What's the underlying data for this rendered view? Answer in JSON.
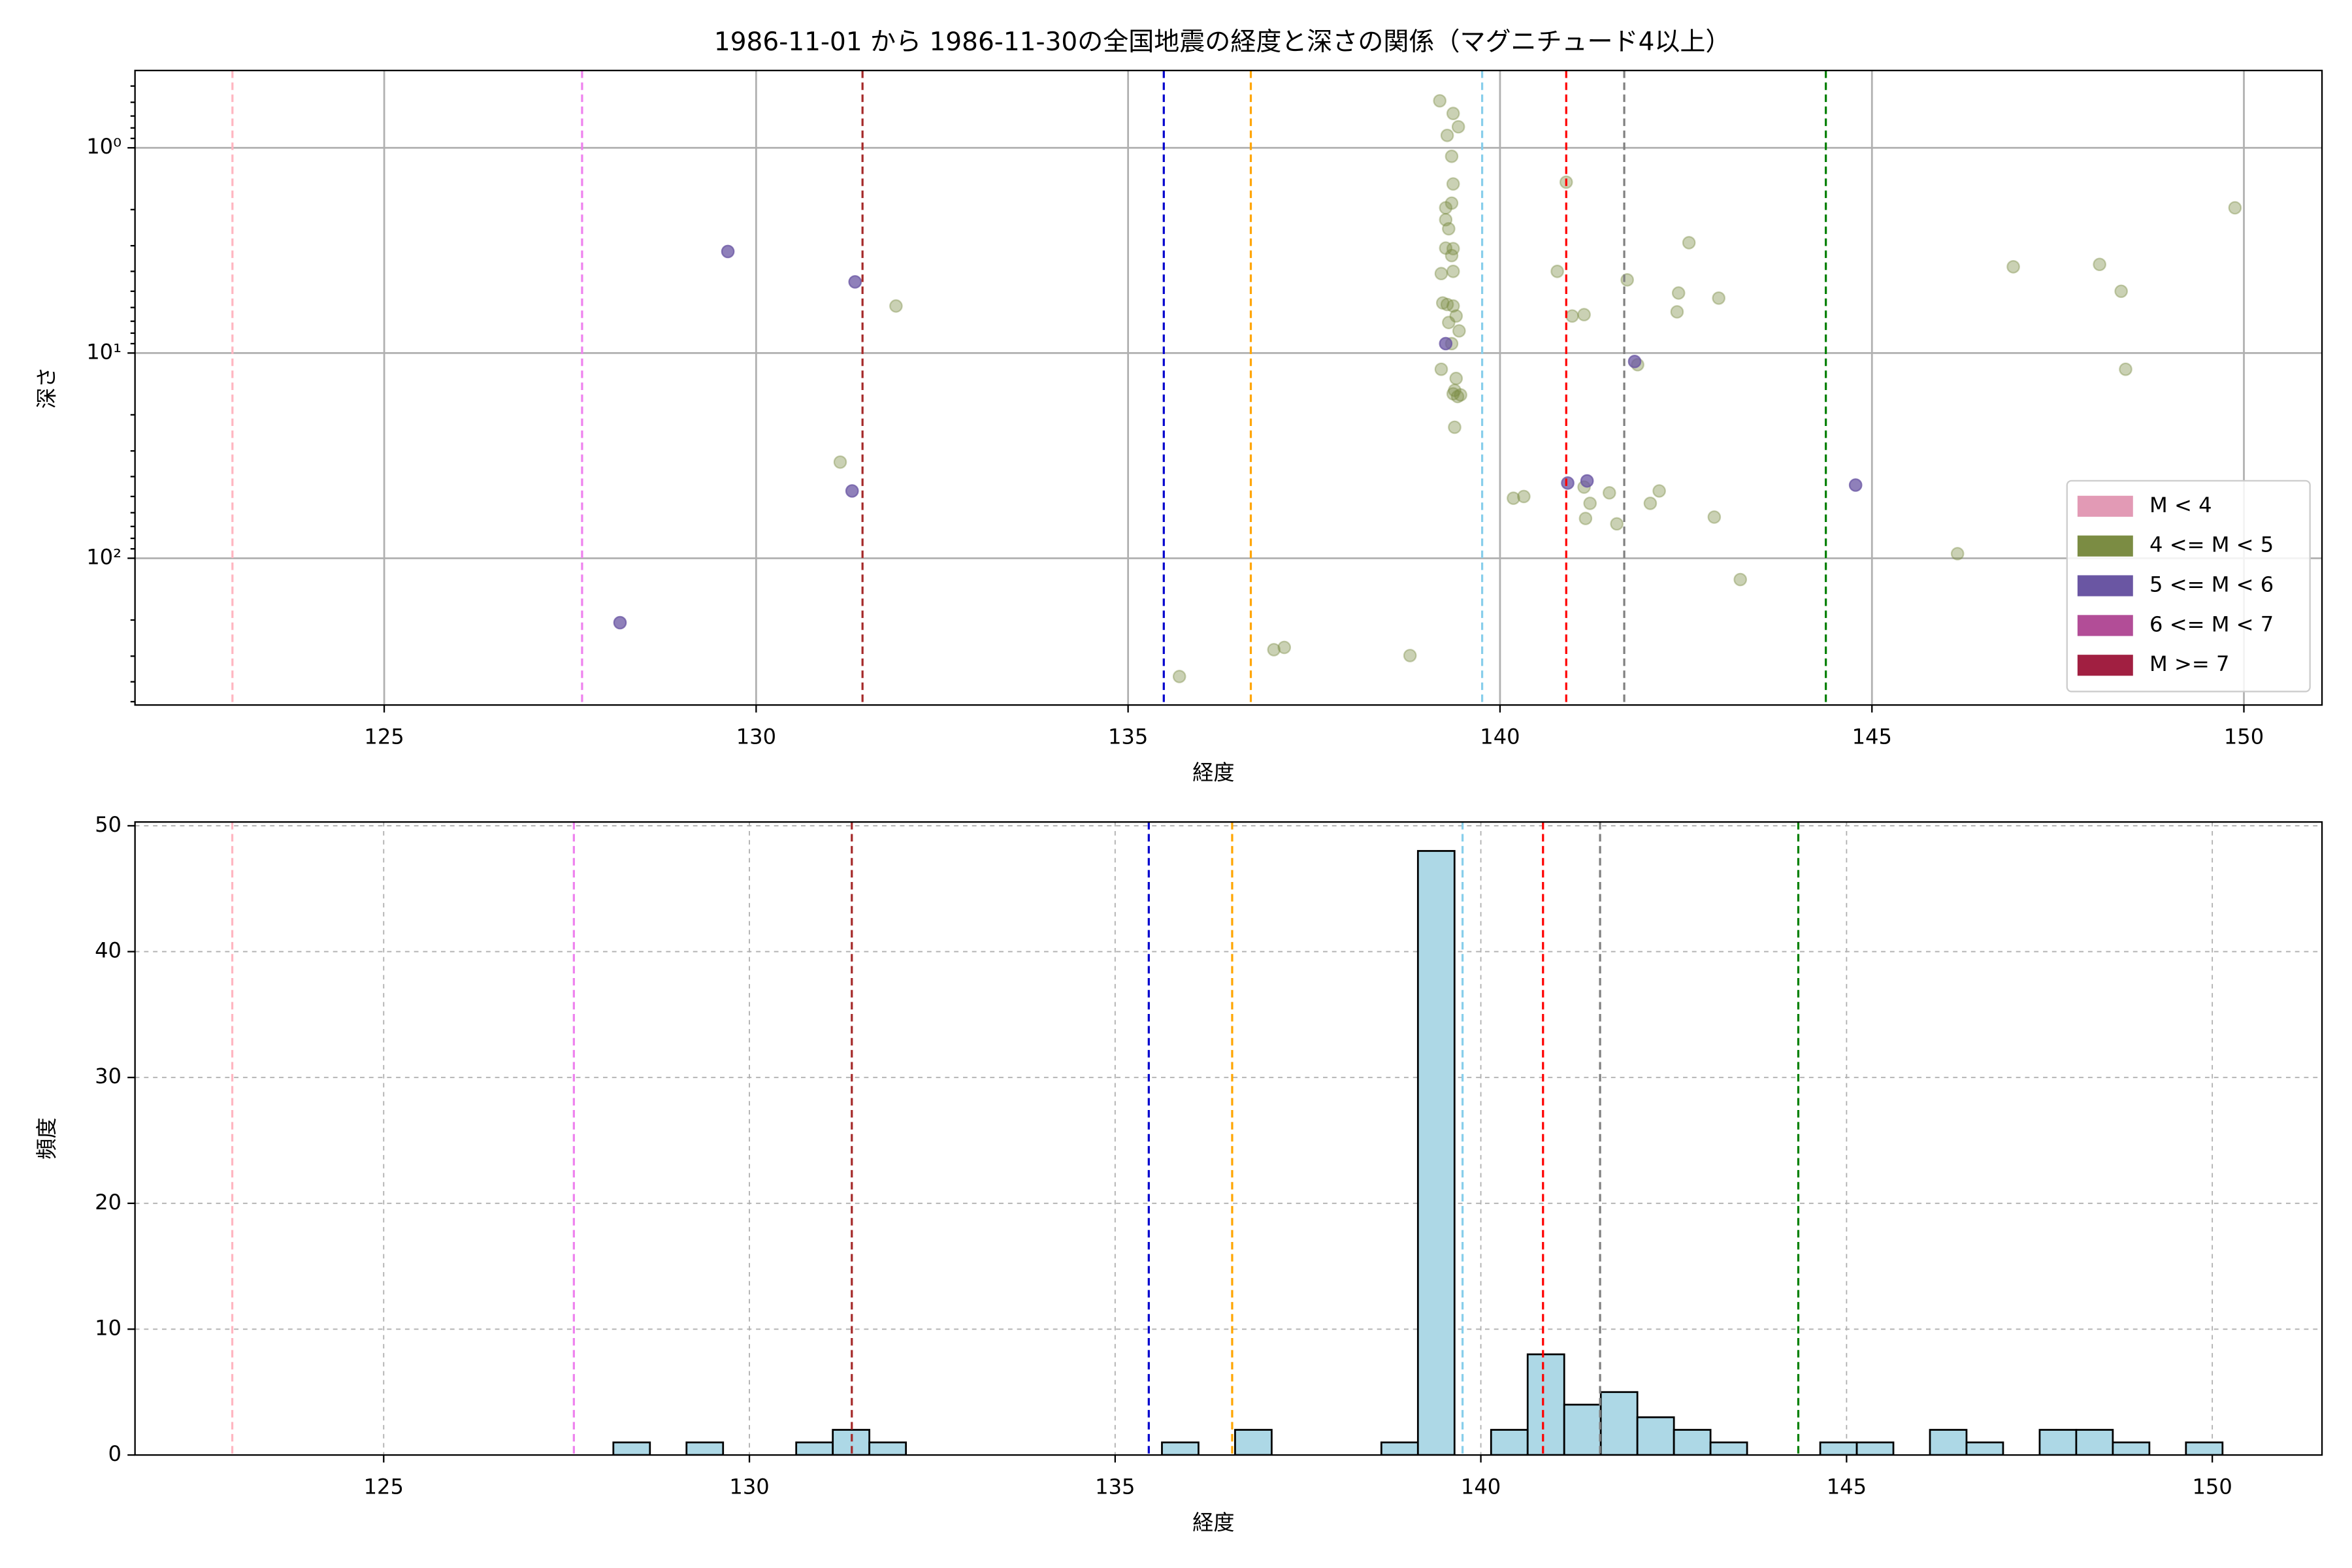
{
  "chart_data": [
    {
      "type": "scatter",
      "title": "1986-11-01 から 1986-11-30の全国地震の経度と深さの関係（マグニチュード4以上）",
      "xlabel": "経度",
      "ylabel": "深さ",
      "xlim": [
        121.65,
        151.05
      ],
      "xticks": [
        125,
        130,
        135,
        140,
        145,
        150
      ],
      "ylim": [
        519,
        0.42
      ],
      "yscale": "log",
      "yticks": [
        {
          "value": 1,
          "label": "10⁰"
        },
        {
          "value": 10,
          "label": "10¹"
        },
        {
          "value": 100,
          "label": "10²"
        }
      ],
      "yminorticks": [
        0.5,
        0.6,
        0.7,
        0.8,
        0.9,
        2,
        3,
        4,
        5,
        6,
        7,
        8,
        9,
        20,
        30,
        40,
        50,
        60,
        70,
        80,
        90,
        200,
        300,
        400,
        500
      ],
      "grid": "solid",
      "legend": "lower right",
      "vlines": [
        {
          "x": 122.96,
          "color": "#ffb6c1"
        },
        {
          "x": 127.66,
          "color": "#ee82ee"
        },
        {
          "x": 131.43,
          "color": "#a52a2a"
        },
        {
          "x": 135.48,
          "color": "#0000cd"
        },
        {
          "x": 136.65,
          "color": "#ffa500"
        },
        {
          "x": 139.76,
          "color": "#87ceeb"
        },
        {
          "x": 140.89,
          "color": "#ff0000"
        },
        {
          "x": 141.67,
          "color": "#808080"
        },
        {
          "x": 144.38,
          "color": "#008000"
        }
      ],
      "series": [
        {
          "name": "M < 4",
          "color": "#e29ab5",
          "alpha": 0.5,
          "x": [],
          "values": []
        },
        {
          "name": "4 <= M < 5",
          "color": "#7b8c43",
          "alpha": 0.4,
          "x": [
            131.88,
            131.13,
            135.69,
            136.96,
            137.1,
            138.79,
            139.19,
            139.29,
            139.37,
            139.44,
            139.35,
            139.37,
            139.27,
            139.27,
            139.31,
            139.35,
            139.27,
            139.37,
            139.35,
            139.21,
            139.37,
            139.23,
            139.29,
            139.37,
            139.41,
            139.31,
            139.45,
            139.35,
            139.21,
            139.41,
            139.39,
            139.47,
            139.43,
            139.37,
            139.39,
            140.89,
            140.77,
            140.97,
            141.13,
            141.71,
            142.54,
            142.4,
            142.38,
            142.94,
            141.85,
            140.32,
            140.18,
            141.13,
            141.21,
            141.15,
            141.47,
            141.57,
            142.14,
            142.02,
            142.88,
            143.23,
            146.15,
            146.9,
            148.06,
            148.35,
            148.41,
            149.88
          ],
          "values": [
            5.9,
            34,
            377,
            279,
            272,
            298,
            0.59,
            0.87,
            0.68,
            0.79,
            1.1,
            1.5,
            1.96,
            2.24,
            2.48,
            1.86,
            3.08,
            3.1,
            3.35,
            4.1,
            4.0,
            5.7,
            5.8,
            5.9,
            6.6,
            7.1,
            7.8,
            9.0,
            12,
            13.3,
            15.2,
            16,
            16.3,
            15.8,
            23,
            1.47,
            4.0,
            6.6,
            6.5,
            4.4,
            2.9,
            5.1,
            6.3,
            5.4,
            11.4,
            50,
            51,
            45,
            54,
            64,
            48,
            68,
            47,
            54,
            63,
            127,
            95,
            3.8,
            3.7,
            5.0,
            12,
            1.96
          ]
        },
        {
          "name": "5 <= M < 6",
          "color": "#6a56a3",
          "alpha": 0.75,
          "x": [
            129.62,
            131.33,
            131.29,
            128.17,
            139.27,
            140.91,
            141.17,
            141.81,
            144.78
          ],
          "values": [
            3.2,
            4.5,
            47,
            206,
            9.0,
            43,
            42,
            11,
            44
          ]
        },
        {
          "name": "6 <= M < 7",
          "color": "#b24d97",
          "alpha": 0.75,
          "x": [],
          "values": []
        },
        {
          "name": "M >= 7",
          "color": "#a11f41",
          "alpha": 0.75,
          "x": [],
          "values": []
        }
      ]
    },
    {
      "type": "histogram",
      "xlabel": "経度",
      "ylabel": "頻度",
      "xlim": [
        121.6,
        151.5
      ],
      "xticks": [
        125,
        130,
        135,
        140,
        145,
        150
      ],
      "ylim": [
        0,
        50.3
      ],
      "yticks": [
        0,
        10,
        20,
        30,
        40,
        50
      ],
      "grid": "dashed",
      "color": "#add8e6",
      "edgecolor": "#000000",
      "vlines": [
        {
          "x": 122.93,
          "color": "#ffb6c1"
        },
        {
          "x": 127.6,
          "color": "#ee82ee"
        },
        {
          "x": 131.4,
          "color": "#a52a2a"
        },
        {
          "x": 135.46,
          "color": "#0000cd"
        },
        {
          "x": 136.6,
          "color": "#ffa500"
        },
        {
          "x": 139.75,
          "color": "#87ceeb"
        },
        {
          "x": 140.85,
          "color": "#ff0000"
        },
        {
          "x": 141.63,
          "color": "#808080"
        },
        {
          "x": 144.34,
          "color": "#008000"
        }
      ],
      "bins": [
        128.14,
        128.64,
        129.14,
        129.64,
        130.14,
        130.64,
        131.14,
        131.64,
        132.14,
        132.64,
        133.14,
        133.64,
        134.14,
        134.64,
        135.14,
        135.64,
        136.14,
        136.64,
        137.14,
        137.64,
        138.14,
        138.64,
        139.14,
        139.64,
        140.14,
        140.64,
        141.14,
        141.64,
        142.14,
        142.64,
        143.14,
        143.64,
        144.14,
        144.64,
        145.14,
        145.64,
        146.14,
        146.64,
        147.14,
        147.64,
        148.14,
        148.64,
        149.14,
        149.64,
        150.14
      ],
      "values": [
        1,
        0,
        1,
        0,
        0,
        1,
        2,
        1,
        0,
        0,
        0,
        0,
        0,
        0,
        0,
        1,
        0,
        2,
        0,
        0,
        0,
        1,
        48,
        0,
        2,
        8,
        4,
        5,
        3,
        2,
        1,
        0,
        0,
        1,
        1,
        0,
        2,
        1,
        0,
        2,
        2,
        1,
        0,
        1
      ]
    }
  ]
}
